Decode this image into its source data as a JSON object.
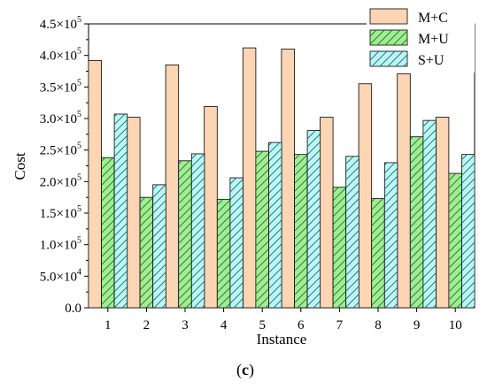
{
  "chart_data": {
    "type": "bar",
    "xlabel": "Instance",
    "ylabel": "Cost",
    "panel_label": "c",
    "panel_label_open": "(",
    "panel_label_close": ")",
    "categories": [
      "1",
      "2",
      "3",
      "4",
      "5",
      "6",
      "7",
      "8",
      "9",
      "10"
    ],
    "ylim": [
      0,
      450000
    ],
    "yticks": [
      0,
      50000,
      100000,
      150000,
      200000,
      250000,
      300000,
      350000,
      400000,
      450000
    ],
    "ytick_labels": [
      {
        "mantissa": "0.0",
        "times": "",
        "base": "",
        "exp": ""
      },
      {
        "mantissa": "5.0",
        "times": "×",
        "base": "10",
        "exp": "4"
      },
      {
        "mantissa": "1.0",
        "times": "×",
        "base": "10",
        "exp": "5"
      },
      {
        "mantissa": "1.5",
        "times": "×",
        "base": "10",
        "exp": "5"
      },
      {
        "mantissa": "2.0",
        "times": "×",
        "base": "10",
        "exp": "5"
      },
      {
        "mantissa": "2.5",
        "times": "×",
        "base": "10",
        "exp": "5"
      },
      {
        "mantissa": "3.0",
        "times": "×",
        "base": "10",
        "exp": "5"
      },
      {
        "mantissa": "3.5",
        "times": "×",
        "base": "10",
        "exp": "5"
      },
      {
        "mantissa": "4.0",
        "times": "×",
        "base": "10",
        "exp": "5"
      },
      {
        "mantissa": "4.5",
        "times": "×",
        "base": "10",
        "exp": "5"
      }
    ],
    "legend_position": "top-right",
    "grid": false,
    "series": [
      {
        "name": "M+C",
        "color": "#fcd5b5",
        "pattern": "none",
        "values": [
          392000,
          302000,
          385000,
          319000,
          412000,
          410000,
          302000,
          355000,
          371000,
          302000
        ]
      },
      {
        "name": "M+U",
        "color": "#99f28c",
        "pattern": "hatch",
        "values": [
          238000,
          175000,
          233000,
          172000,
          248000,
          243000,
          191000,
          173000,
          271000,
          213000
        ]
      },
      {
        "name": "S+U",
        "color": "#b3fbfb",
        "pattern": "hatch",
        "values": [
          307000,
          195000,
          244000,
          206000,
          262000,
          281000,
          240000,
          230000,
          297000,
          243000
        ]
      }
    ]
  }
}
